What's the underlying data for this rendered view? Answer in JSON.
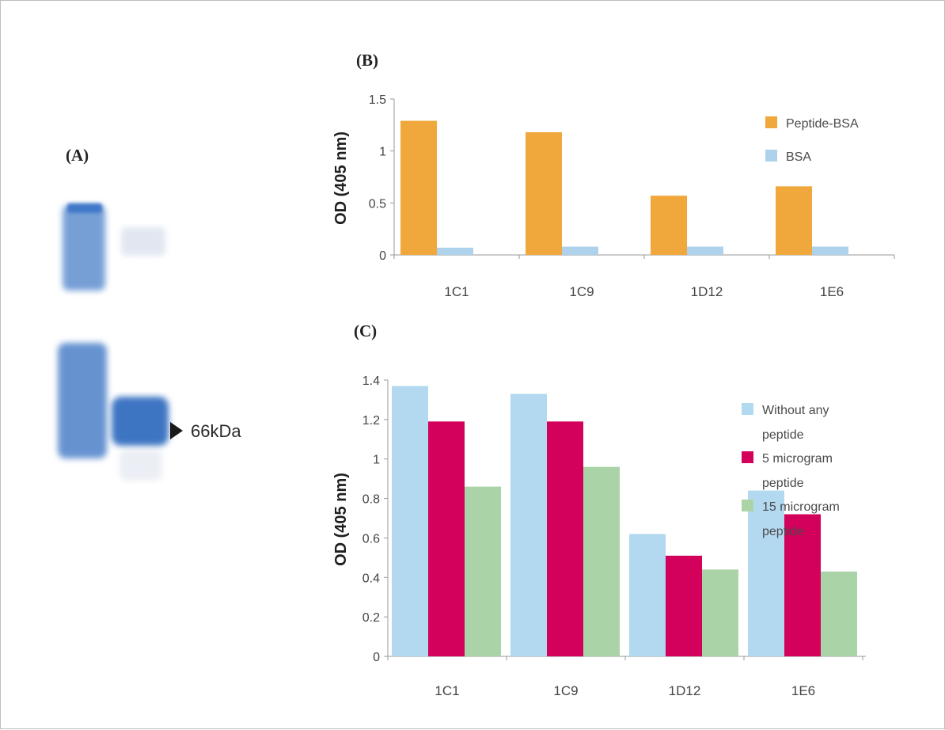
{
  "panel_a": {
    "label": "(A)",
    "marker_label": "66kDa"
  },
  "chart_data": [
    {
      "panel": "(B)",
      "type": "bar",
      "categories": [
        "1C1",
        "1C9",
        "1D12",
        "1E6"
      ],
      "series": [
        {
          "name": "Peptide-BSA",
          "color": "#f0a83c",
          "values": [
            1.29,
            1.18,
            0.57,
            0.66
          ]
        },
        {
          "name": "BSA",
          "color": "#aed2ec",
          "values": [
            0.07,
            0.08,
            0.08,
            0.08
          ]
        }
      ],
      "ylabel": "OD (405 nm)",
      "ylim": [
        0,
        1.5
      ],
      "yticks": [
        0,
        0.5,
        1,
        1.5
      ],
      "ytick_labels": [
        "0",
        "0.5",
        "1",
        "1.5"
      ],
      "grid": false,
      "legend_position": "right"
    },
    {
      "panel": "(C)",
      "type": "bar",
      "categories": [
        "1C1",
        "1C9",
        "1D12",
        "1E6"
      ],
      "series": [
        {
          "name": "Without any peptide",
          "legend_lines": [
            "Without any",
            "peptide"
          ],
          "color": "#b3d9f1",
          "values": [
            1.37,
            1.33,
            0.62,
            0.84
          ]
        },
        {
          "name": "5 microgram peptide",
          "legend_lines": [
            "5 microgram",
            "peptide"
          ],
          "color": "#d3005c",
          "values": [
            1.19,
            1.19,
            0.51,
            0.72
          ]
        },
        {
          "name": "15 microgram peptide",
          "legend_lines": [
            "15 microgram",
            "peptide"
          ],
          "color": "#abd3a8",
          "values": [
            0.86,
            0.96,
            0.44,
            0.43
          ]
        }
      ],
      "ylabel": "OD (405 nm)",
      "ylim": [
        0,
        1.4
      ],
      "yticks": [
        0,
        0.2,
        0.4,
        0.6,
        0.8,
        1,
        1.2,
        1.4
      ],
      "ytick_labels": [
        "0",
        "0.2",
        "0.4",
        "0.6",
        "0.8",
        "1",
        "1.2",
        "1.4"
      ],
      "grid": false,
      "legend_position": "right"
    }
  ]
}
